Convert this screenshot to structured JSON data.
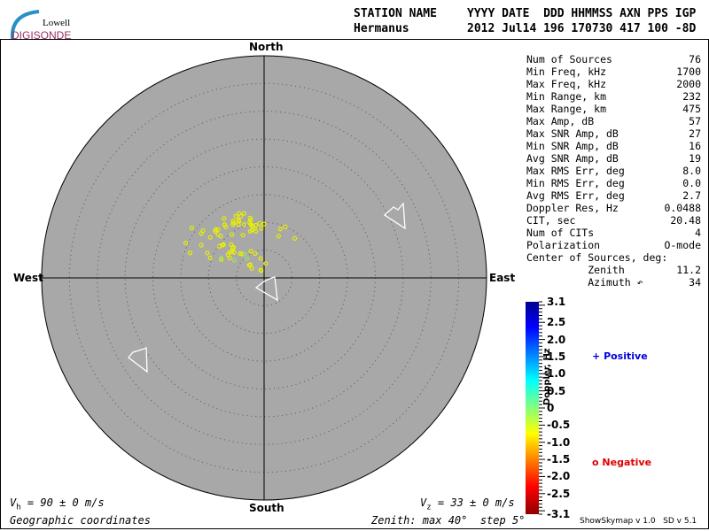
{
  "logo": {
    "line1": "Lowell",
    "line2": "DIGISONDE"
  },
  "header": {
    "labels": [
      "STATION NAME",
      "YYYY DATE  DDD HHMMSS AXN PPS IGP"
    ],
    "values": [
      "Hermanus",
      "2012 Jul14 196 170730 417 100 -8D"
    ]
  },
  "stats": [
    {
      "label": "Num of Sources",
      "value": "76"
    },
    {
      "label": "Min Freq, kHz",
      "value": "1700"
    },
    {
      "label": "Max Freq, kHz",
      "value": "2000"
    },
    {
      "label": "Min Range, km",
      "value": "232"
    },
    {
      "label": "Max Range, km",
      "value": "475"
    },
    {
      "label": "Max Amp, dB",
      "value": "57"
    },
    {
      "label": "Max SNR Amp, dB",
      "value": "27"
    },
    {
      "label": "Min SNR Amp, dB",
      "value": "16"
    },
    {
      "label": "Avg SNR Amp, dB",
      "value": "19"
    },
    {
      "label": "Max RMS Err, deg",
      "value": "8.0"
    },
    {
      "label": "Min RMS Err, deg",
      "value": "0.0"
    },
    {
      "label": "Avg RMS Err, deg",
      "value": "2.7"
    },
    {
      "label": "Doppler Res, Hz",
      "value": "0.0488"
    },
    {
      "label": "CIT, sec",
      "value": "20.48"
    },
    {
      "label": "Num of CITs",
      "value": "4"
    },
    {
      "label": "Polarization",
      "value": "O-mode"
    },
    {
      "label": "Center of Sources, deg:",
      "value": ""
    },
    {
      "label": "          Zenith",
      "value": "11.2"
    },
    {
      "label": "          Azimuth ↶",
      "value": "34"
    }
  ],
  "directions": {
    "north": "North",
    "south": "South",
    "east": "East",
    "west": "West"
  },
  "footer": {
    "vh": "= 90 ± 0 m/s",
    "vh_sym": "V",
    "vh_sub": "h",
    "vz": "= 33 ± 0 m/s",
    "vz_sym": "V",
    "vz_sub": "z",
    "coords": "Geographic coordinates",
    "zenith": "Zenith: max 40°  step 5°",
    "version": "ShowSkymap v 1.0   SD v 5.1"
  },
  "legend": {
    "positive": "Positive",
    "negative": "Negative",
    "positive_symbol": "+",
    "negative_symbol": "o",
    "positive_color": "#0000e0",
    "negative_color": "#e00000"
  },
  "chart_data": {
    "type": "scatter",
    "projection": "polar skymap",
    "zenith_max_deg": 40,
    "zenith_step_deg": 5,
    "colorbar": {
      "label": "Doppler, Hz",
      "range": [
        -3.1,
        3.1
      ],
      "ticks": [
        "3.1",
        "2.5",
        "2.0",
        "1.5",
        "1.0",
        "0.5",
        "0",
        "-0.5",
        "-1.0",
        "-1.5",
        "-2.0",
        "-2.5",
        "-3.1"
      ]
    },
    "points_xy_deg": [
      [
        -13,
        9
      ],
      [
        -11,
        8.5
      ],
      [
        -11.3,
        8
      ],
      [
        -14.1,
        6.3
      ],
      [
        -13.3,
        4.5
      ],
      [
        -8.7,
        8.7
      ],
      [
        -8.3,
        8.7
      ],
      [
        -7.2,
        10.7
      ],
      [
        -7.1,
        9.6
      ],
      [
        -6.9,
        9.2
      ],
      [
        -5.6,
        10.2
      ],
      [
        -5.4,
        9.9
      ],
      [
        -5.6,
        9.6
      ],
      [
        -4.5,
        11.6
      ],
      [
        -5.1,
        11.1
      ],
      [
        -4.2,
        11.1
      ],
      [
        -3.6,
        11.6
      ],
      [
        -4.6,
        10.4
      ],
      [
        -4.5,
        10.2
      ],
      [
        -4.6,
        9.6
      ],
      [
        -3.6,
        9.6
      ],
      [
        -2.5,
        10.8
      ],
      [
        -2.4,
        10.4
      ],
      [
        -2.6,
        10
      ],
      [
        -2.4,
        9.6
      ],
      [
        -2.1,
        9.4
      ],
      [
        -2,
        9.2
      ],
      [
        -1.5,
        9.5
      ],
      [
        -0.8,
        9.8
      ],
      [
        0,
        9.7
      ],
      [
        -1.7,
        8.9
      ],
      [
        -0.5,
        8.9
      ],
      [
        -2.5,
        8.4
      ],
      [
        -2.2,
        8.6
      ],
      [
        -1.5,
        8.4
      ],
      [
        2.9,
        8.8
      ],
      [
        3.8,
        9.2
      ],
      [
        2.6,
        7.5
      ],
      [
        5.5,
        7.1
      ],
      [
        -8.8,
        8.4
      ],
      [
        -8.3,
        7.8
      ],
      [
        -7.8,
        7.5
      ],
      [
        -5.8,
        7.8
      ],
      [
        -3.8,
        7.7
      ],
      [
        -9.7,
        7.3
      ],
      [
        -11.3,
        5.9
      ],
      [
        -8,
        5.7
      ],
      [
        -7.5,
        6
      ],
      [
        -7.3,
        6
      ],
      [
        -7.5,
        5.9
      ],
      [
        -5.9,
        6
      ],
      [
        -5.5,
        5.5
      ],
      [
        -5.6,
        5.3
      ],
      [
        -5.8,
        4.8
      ],
      [
        -5.4,
        4.6
      ],
      [
        -4.3,
        4.4
      ],
      [
        -4,
        4.3
      ],
      [
        -6.2,
        4.6
      ],
      [
        -10.2,
        4.5
      ],
      [
        -9.7,
        3.6
      ],
      [
        -7.7,
        3.3
      ],
      [
        -6.2,
        3.6
      ],
      [
        -6.5,
        4.2
      ],
      [
        -5.4,
        3.2
      ],
      [
        -7.7,
        3.6
      ],
      [
        -3.5,
        4.3
      ],
      [
        -3.1,
        3.5
      ],
      [
        -2.4,
        4.8
      ],
      [
        -1.6,
        4.4
      ],
      [
        -0.6,
        3.5
      ],
      [
        -2.5,
        2.4
      ],
      [
        -2.2,
        1.7
      ],
      [
        0.3,
        2.6
      ],
      [
        -0.6,
        1.4
      ],
      [
        -0.5,
        1.3
      ],
      [
        -2.7,
        2.3
      ]
    ],
    "point_doppler": "negative (yellow, ~-0.8 Hz), few green (~0 Hz)",
    "velocity_arrows": "3 (center and two off-axis)"
  }
}
